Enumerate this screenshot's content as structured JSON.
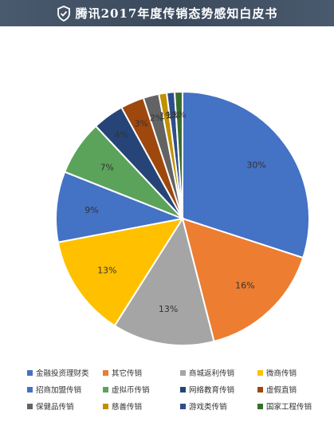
{
  "header": {
    "title": "腾讯2017年度传销态势感知白皮书"
  },
  "chart_data": {
    "type": "pie",
    "title": "",
    "labels": [
      "金融投资理财类",
      "其它传销",
      "商城返利传销",
      "微商传销",
      "招商加盟传销",
      "虚拟币传销",
      "网络教育传销",
      "虚假直销",
      "保健品传销",
      "慈善传销",
      "游戏类传销",
      "国家工程传销"
    ],
    "values": [
      30,
      16,
      13,
      13,
      9,
      7,
      4,
      3,
      2,
      1,
      1,
      1
    ],
    "value_labels": [
      "30%",
      "16%",
      "13%",
      "13%",
      "9%",
      "7%",
      "4%",
      "3%",
      "2%",
      "1%",
      "1%",
      "1%"
    ],
    "colors": [
      "#4472c4",
      "#ed7d31",
      "#a5a5a5",
      "#ffc000",
      "#4472c4",
      "#5ba35b",
      "#264478",
      "#9e480e",
      "#636363",
      "#bf9000",
      "#2e4d8a",
      "#3a6e2f"
    ],
    "legend_position": "bottom"
  }
}
